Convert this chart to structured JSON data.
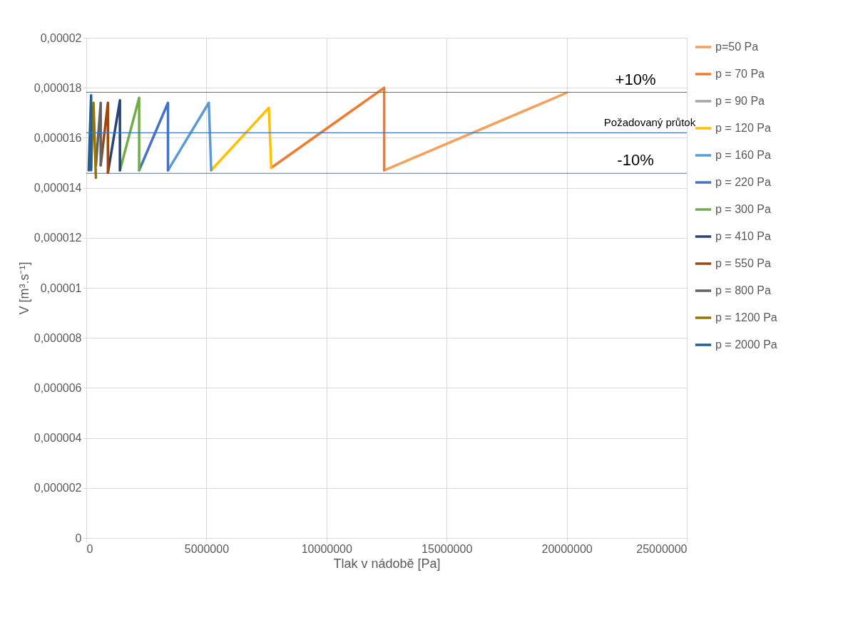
{
  "chart_data": {
    "type": "line",
    "xlabel": "Tlak v nádobě [Pa]",
    "ylabel": "V [m³.s⁻¹]",
    "xlim": [
      0,
      25000000
    ],
    "xticks": [
      0,
      5000000,
      10000000,
      15000000,
      20000000,
      25000000
    ],
    "ylim": [
      0,
      2e-05
    ],
    "yticks": [
      {
        "value": 0,
        "label": "0"
      },
      {
        "value": 2e-06,
        "label": "0,000002"
      },
      {
        "value": 4e-06,
        "label": "0,000004"
      },
      {
        "value": 6e-06,
        "label": "0,000006"
      },
      {
        "value": 8e-06,
        "label": "0,000008"
      },
      {
        "value": 1e-05,
        "label": "0,00001"
      },
      {
        "value": 1.2e-05,
        "label": "0,000012"
      },
      {
        "value": 1.4e-05,
        "label": "0,000014"
      },
      {
        "value": 1.6e-05,
        "label": "0,000016"
      },
      {
        "value": 1.8e-05,
        "label": "0,000018"
      },
      {
        "value": 2e-05,
        "label": "0,00002"
      }
    ],
    "grid": true,
    "legend": "right",
    "marker": "none",
    "line_style": "solid",
    "series": [
      {
        "name": "p=50 Pa",
        "color": "#f4a15d",
        "x": [
          12400000,
          20000000
        ],
        "values": [
          1.47e-05,
          1.78e-05
        ]
      },
      {
        "name": "p = 70 Pa",
        "color": "#ed7d31",
        "x": [
          7700000,
          12400000,
          12400000
        ],
        "values": [
          1.48e-05,
          1.8e-05,
          1.47e-05
        ]
      },
      {
        "name": "p = 90 Pa",
        "color": "#a5a5a5"
      },
      {
        "name": "p = 120 Pa",
        "color": "#ffc000",
        "x": [
          5200000,
          7600000,
          7700000
        ],
        "values": [
          1.47e-05,
          1.72e-05,
          1.48e-05
        ]
      },
      {
        "name": "p = 160 Pa",
        "color": "#5b9bd5",
        "x": [
          3400000,
          5100000,
          5200000
        ],
        "values": [
          1.47e-05,
          1.74e-05,
          1.47e-05
        ]
      },
      {
        "name": "p = 220 Pa",
        "color": "#4472c4",
        "x": [
          2200000,
          3400000,
          3400000
        ],
        "values": [
          1.47e-05,
          1.74e-05,
          1.47e-05
        ]
      },
      {
        "name": "p = 300 Pa",
        "color": "#70ad47",
        "x": [
          1400000,
          2200000,
          2200000
        ],
        "values": [
          1.47e-05,
          1.76e-05,
          1.47e-05
        ]
      },
      {
        "name": "p = 410 Pa",
        "color": "#264478",
        "x": [
          900000,
          1400000,
          1400000
        ],
        "values": [
          1.46e-05,
          1.75e-05,
          1.47e-05
        ]
      },
      {
        "name": "p = 550 Pa",
        "color": "#9e480e",
        "x": [
          600000,
          900000,
          900000
        ],
        "values": [
          1.49e-05,
          1.74e-05,
          1.46e-05
        ]
      },
      {
        "name": "p = 800 Pa",
        "color": "#636363",
        "x": [
          400000,
          600000,
          600000
        ],
        "values": [
          1.49e-05,
          1.74e-05,
          1.49e-05
        ]
      },
      {
        "name": "p = 1200 Pa",
        "color": "#997300",
        "x": [
          200000,
          300000,
          400000
        ],
        "values": [
          1.48e-05,
          1.74e-05,
          1.44e-05
        ]
      },
      {
        "name": "p = 2000 Pa",
        "color": "#255e91",
        "x": [
          100000,
          200000,
          200000
        ],
        "values": [
          1.47e-05,
          1.77e-05,
          1.47e-05
        ]
      }
    ],
    "ref_lines": [
      {
        "axis": "y",
        "value": 1.782e-05,
        "color": "#4472c4"
      },
      {
        "axis": "y",
        "value": 1.62e-05,
        "color": "#4472c4"
      },
      {
        "axis": "y",
        "value": 1.458e-05,
        "color": "#4472c4"
      }
    ],
    "annotations": [
      {
        "text": "+10%",
        "y": 1.782e-05
      },
      {
        "text": "Požadovaný průtok",
        "y": 1.62e-05
      },
      {
        "text": "-10%",
        "y": 1.458e-05
      }
    ]
  }
}
